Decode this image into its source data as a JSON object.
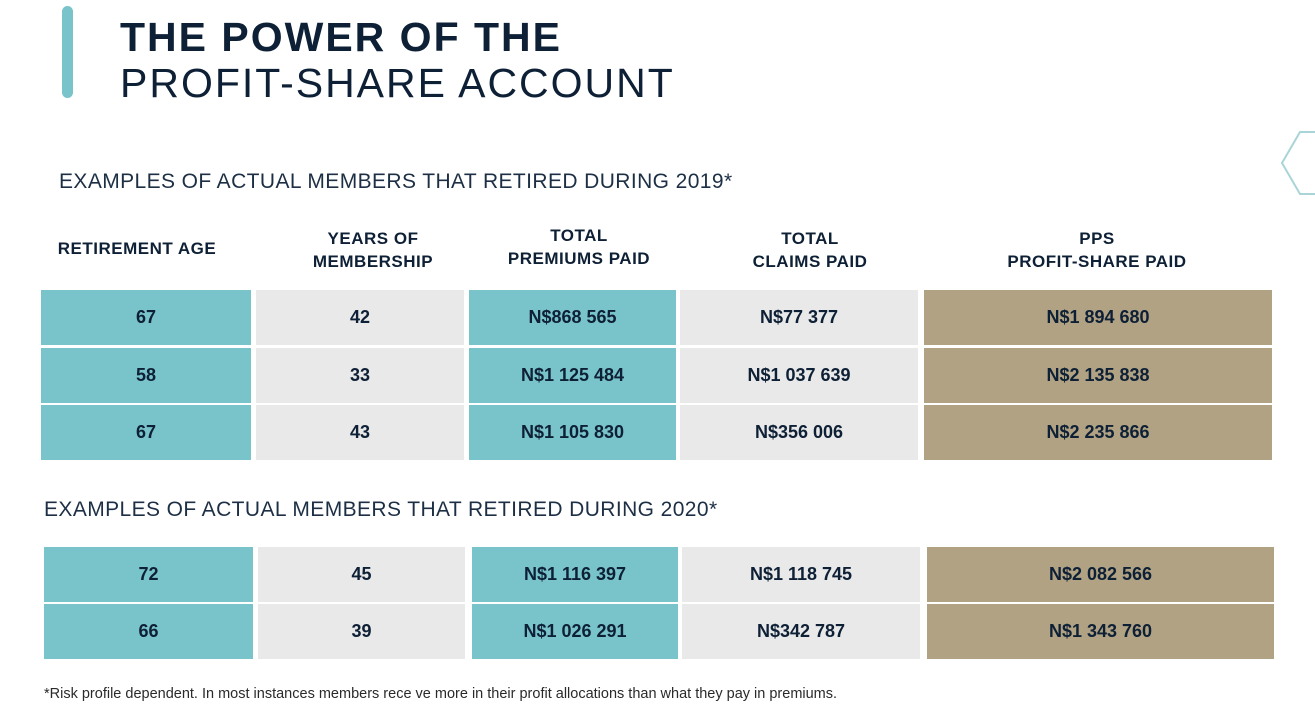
{
  "header": {
    "title_line1": "THE POWER OF THE",
    "title_line2": "PROFIT-SHARE ACCOUNT"
  },
  "colors": {
    "accent_teal": "#79c4ca",
    "cell_grey": "#e9e9e9",
    "cell_tan": "#b0a283",
    "navy_text": "#0e2035"
  },
  "section_2019": {
    "title": "EXAMPLES OF ACTUAL MEMBERS THAT RETIRED DURING 2019*",
    "headers": [
      {
        "line1": "RETIREMENT AGE",
        "line2": ""
      },
      {
        "line1": "YEARS OF",
        "line2": "MEMBERSHIP"
      },
      {
        "line1": "TOTAL",
        "line2": "PREMIUMS PAID"
      },
      {
        "line1": "TOTAL",
        "line2": "CLAIMS PAID"
      },
      {
        "line1": "PPS",
        "line2": "PROFIT-SHARE PAID"
      }
    ],
    "rows": [
      [
        "67",
        "42",
        "N$868 565",
        "N$77 377",
        "N$1 894 680"
      ],
      [
        "58",
        "33",
        "N$1 125 484",
        "N$1 037 639",
        "N$2 135 838"
      ],
      [
        "67",
        "43",
        "N$1 105 830",
        "N$356 006",
        "N$2 235 866"
      ]
    ]
  },
  "section_2020": {
    "title": "EXAMPLES OF ACTUAL MEMBERS THAT RETIRED DURING 2020*",
    "rows": [
      [
        "72",
        "45",
        "N$1 116 397",
        "N$1 118 745",
        "N$2 082 566"
      ],
      [
        "66",
        "39",
        "N$1 026 291",
        "N$342 787",
        "N$1 343 760"
      ]
    ]
  },
  "footnote": "*Risk profile dependent. In most instances members rece ve more in their profit allocations than what they pay in premiums."
}
